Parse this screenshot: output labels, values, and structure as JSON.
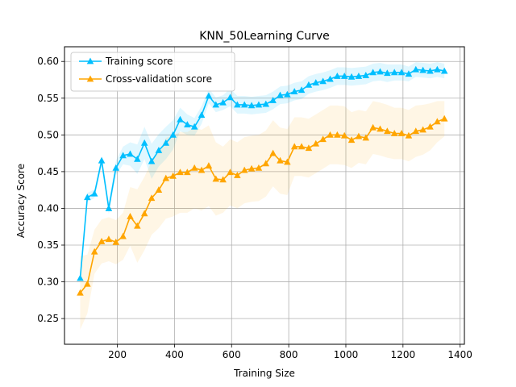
{
  "chart_data": {
    "type": "line",
    "title": "KNN_50Learning Curve",
    "xlabel": "Training Size",
    "ylabel": "Accuracy Score",
    "xlim": [
      15,
      1415
    ],
    "ylim": [
      0.215,
      0.62
    ],
    "xticks": [
      200,
      400,
      600,
      800,
      1000,
      1200,
      1400
    ],
    "yticks": [
      0.25,
      0.3,
      0.35,
      0.4,
      0.45,
      0.5,
      0.55,
      0.6
    ],
    "grid": true,
    "legend_position": "upper-left",
    "x": [
      70,
      95,
      120,
      145,
      170,
      195,
      220,
      245,
      270,
      295,
      320,
      345,
      370,
      395,
      420,
      445,
      470,
      495,
      520,
      545,
      570,
      595,
      620,
      645,
      670,
      695,
      720,
      745,
      770,
      795,
      820,
      845,
      870,
      895,
      920,
      945,
      970,
      995,
      1020,
      1045,
      1070,
      1095,
      1120,
      1145,
      1170,
      1195,
      1220,
      1245,
      1270,
      1295,
      1320,
      1345
    ],
    "series": [
      {
        "name": "Training score",
        "color": "#00bfff",
        "marker": "triangle",
        "values": [
          0.305,
          0.415,
          0.42,
          0.465,
          0.4,
          0.455,
          0.472,
          0.474,
          0.467,
          0.489,
          0.464,
          0.479,
          0.489,
          0.5,
          0.521,
          0.514,
          0.511,
          0.527,
          0.553,
          0.541,
          0.544,
          0.551,
          0.541,
          0.541,
          0.54,
          0.541,
          0.542,
          0.547,
          0.554,
          0.555,
          0.559,
          0.561,
          0.568,
          0.571,
          0.573,
          0.576,
          0.58,
          0.58,
          0.579,
          0.58,
          0.581,
          0.585,
          0.586,
          0.584,
          0.585,
          0.585,
          0.583,
          0.589,
          0.588,
          0.587,
          0.589,
          0.587
        ],
        "band_halfwidth": [
          0.006,
          0.006,
          0.006,
          0.007,
          0.008,
          0.01,
          0.012,
          0.016,
          0.02,
          0.022,
          0.024,
          0.022,
          0.022,
          0.02,
          0.016,
          0.014,
          0.012,
          0.012,
          0.01,
          0.01,
          0.01,
          0.012,
          0.012,
          0.012,
          0.012,
          0.012,
          0.012,
          0.012,
          0.012,
          0.012,
          0.012,
          0.012,
          0.012,
          0.012,
          0.012,
          0.012,
          0.012,
          0.012,
          0.012,
          0.012,
          0.012,
          0.012,
          0.012,
          0.012,
          0.011,
          0.011,
          0.01,
          0.01,
          0.01,
          0.01,
          0.01,
          0.01
        ]
      },
      {
        "name": "Cross-validation score",
        "color": "#ffa500",
        "marker": "triangle",
        "values": [
          0.285,
          0.297,
          0.341,
          0.355,
          0.358,
          0.354,
          0.362,
          0.389,
          0.376,
          0.393,
          0.414,
          0.425,
          0.441,
          0.444,
          0.449,
          0.449,
          0.455,
          0.452,
          0.458,
          0.44,
          0.439,
          0.449,
          0.445,
          0.452,
          0.454,
          0.455,
          0.461,
          0.475,
          0.465,
          0.463,
          0.484,
          0.484,
          0.482,
          0.488,
          0.494,
          0.5,
          0.5,
          0.499,
          0.493,
          0.498,
          0.496,
          0.51,
          0.508,
          0.505,
          0.502,
          0.502,
          0.499,
          0.505,
          0.507,
          0.511,
          0.518,
          0.522
        ],
        "band_halfwidth": [
          0.05,
          0.04,
          0.03,
          0.03,
          0.03,
          0.03,
          0.032,
          0.04,
          0.05,
          0.05,
          0.05,
          0.052,
          0.055,
          0.055,
          0.055,
          0.055,
          0.055,
          0.055,
          0.055,
          0.05,
          0.045,
          0.045,
          0.045,
          0.045,
          0.045,
          0.045,
          0.045,
          0.045,
          0.045,
          0.045,
          0.04,
          0.04,
          0.04,
          0.04,
          0.04,
          0.04,
          0.04,
          0.04,
          0.038,
          0.036,
          0.036,
          0.036,
          0.036,
          0.036,
          0.035,
          0.035,
          0.035,
          0.035,
          0.034,
          0.032,
          0.028,
          0.024
        ]
      }
    ]
  }
}
